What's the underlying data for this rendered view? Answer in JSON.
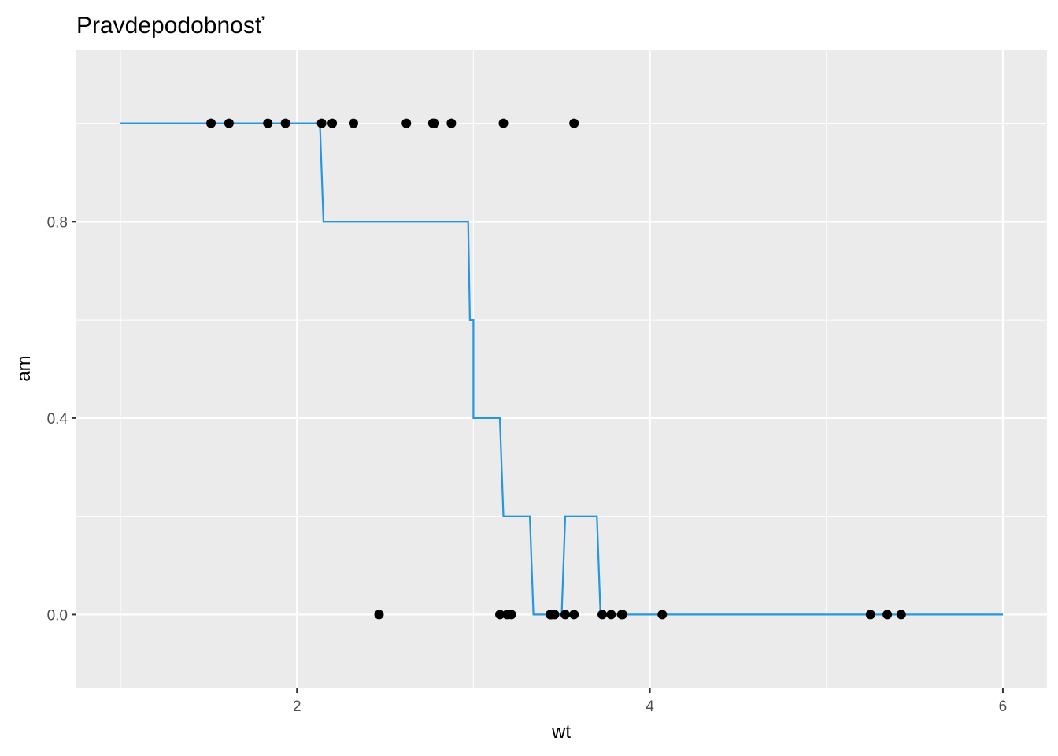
{
  "chart_data": {
    "type": "scatter",
    "title": "Pravdepodobnosť",
    "xlabel": "wt",
    "ylabel": "am",
    "xlim": [
      0.75,
      6.25
    ],
    "ylim": [
      -0.15,
      1.15
    ],
    "grid": true,
    "x_ticks": [
      {
        "value": 2,
        "label": "2"
      },
      {
        "value": 4,
        "label": "4"
      },
      {
        "value": 6,
        "label": "6"
      }
    ],
    "y_ticks": [
      {
        "value": 0.0,
        "label": "0.0"
      },
      {
        "value": 0.4,
        "label": "0.4"
      },
      {
        "value": 0.8,
        "label": "0.8"
      }
    ],
    "x_minor": [
      1,
      3,
      5
    ],
    "y_minor": [
      0.2,
      0.6,
      1.0
    ],
    "points": {
      "color": "#000000",
      "x": [
        1.513,
        1.615,
        1.835,
        1.935,
        2.14,
        2.2,
        2.32,
        2.62,
        2.77,
        2.78,
        2.875,
        3.17,
        3.57,
        2.465,
        3.15,
        3.19,
        3.215,
        3.435,
        3.44,
        3.44,
        3.46,
        3.52,
        3.57,
        3.73,
        3.78,
        3.84,
        3.845,
        4.07,
        5.25,
        5.345,
        5.424
      ],
      "y": [
        1,
        1,
        1,
        1,
        1,
        1,
        1,
        1,
        1,
        1,
        1,
        1,
        1,
        0,
        0,
        0,
        0,
        0,
        0,
        0,
        0,
        0,
        0,
        0,
        0,
        0,
        0,
        0,
        0,
        0,
        0
      ]
    },
    "step_line": {
      "color": "#2596e0",
      "x": [
        1.0,
        2.13,
        2.13,
        2.15,
        2.15,
        2.97,
        2.97,
        2.98,
        2.98,
        3.0,
        3.0,
        3.15,
        3.15,
        3.17,
        3.17,
        3.32,
        3.32,
        3.34,
        3.34,
        3.5,
        3.5,
        3.52,
        3.52,
        3.7,
        3.7,
        3.72,
        3.72,
        6.0
      ],
      "y": [
        1.0,
        1.0,
        1.0,
        0.8,
        0.8,
        0.8,
        0.8,
        0.6,
        0.6,
        0.6,
        0.4,
        0.4,
        0.4,
        0.2,
        0.2,
        0.2,
        0.2,
        0.0,
        0.0,
        0.0,
        0.0,
        0.2,
        0.2,
        0.2,
        0.2,
        0.0,
        0.0,
        0.0
      ]
    }
  }
}
